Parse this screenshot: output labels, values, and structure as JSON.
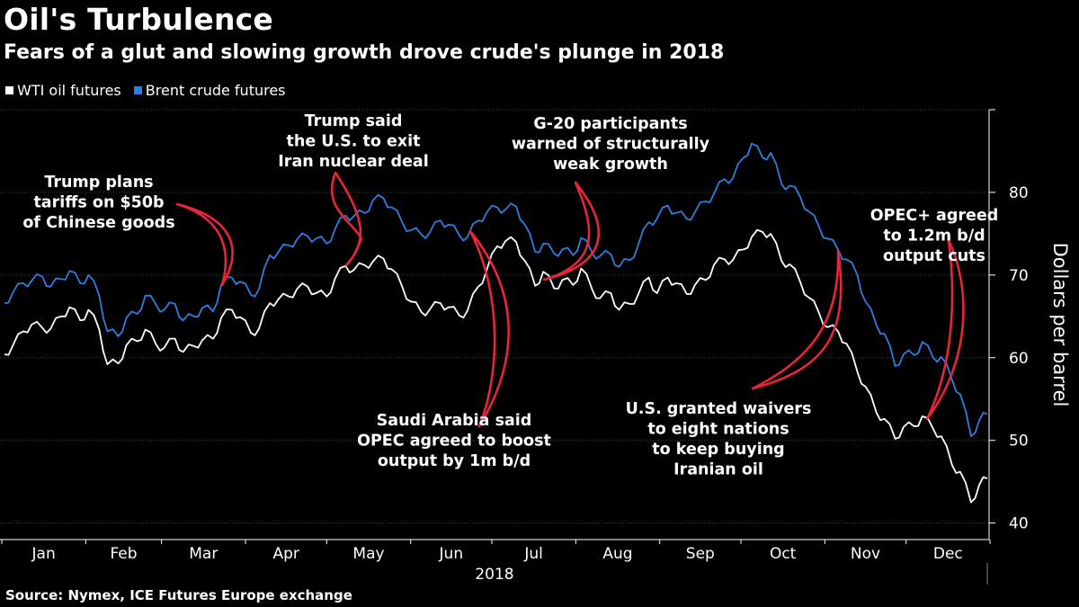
{
  "header": {
    "title": "Oil's Turbulence",
    "subtitle": "Fears of a glut and slowing growth drove crude's plunge in 2018"
  },
  "source": "Source: Nymex, ICE Futures Europe exchange",
  "colors": {
    "wti": "#ffffff",
    "brent": "#2f7ee0",
    "annotation_arrow": "#e8253a",
    "grid": "#444444"
  },
  "chart_data": {
    "type": "line",
    "title": "Oil's Turbulence",
    "subtitle": "Fears of a glut and slowing growth drove crude's plunge in 2018",
    "xlabel": "2018",
    "ylabel": "Dollars per barrel",
    "ylim": [
      38,
      90
    ],
    "yticks": [
      40,
      50,
      60,
      70,
      80
    ],
    "xlim": [
      1,
      365
    ],
    "months": [
      "Jan",
      "Feb",
      "Mar",
      "Apr",
      "May",
      "Jun",
      "Jul",
      "Aug",
      "Sep",
      "Oct",
      "Nov",
      "Dec"
    ],
    "year_label": "2018",
    "grid": true,
    "legend_position": "top-left",
    "series": [
      {
        "name": "WTI oil futures",
        "color": "#ffffff",
        "points": [
          [
            2,
            60.4
          ],
          [
            5,
            61.4
          ],
          [
            9,
            63.2
          ],
          [
            12,
            64.0
          ],
          [
            16,
            63.6
          ],
          [
            19,
            63.5
          ],
          [
            23,
            65.0
          ],
          [
            26,
            66.1
          ],
          [
            30,
            64.5
          ],
          [
            33,
            65.8
          ],
          [
            37,
            63.4
          ],
          [
            40,
            59.2
          ],
          [
            44,
            59.3
          ],
          [
            47,
            61.5
          ],
          [
            51,
            62.0
          ],
          [
            54,
            63.4
          ],
          [
            58,
            61.6
          ],
          [
            61,
            61.2
          ],
          [
            65,
            62.3
          ],
          [
            68,
            60.7
          ],
          [
            72,
            61.4
          ],
          [
            75,
            62.1
          ],
          [
            79,
            62.3
          ],
          [
            82,
            64.8
          ],
          [
            86,
            65.8
          ],
          [
            89,
            64.9
          ],
          [
            93,
            63.0
          ],
          [
            96,
            63.5
          ],
          [
            100,
            66.6
          ],
          [
            103,
            67.0
          ],
          [
            107,
            67.4
          ],
          [
            110,
            68.3
          ],
          [
            114,
            68.6
          ],
          [
            117,
            67.8
          ],
          [
            121,
            67.4
          ],
          [
            124,
            69.5
          ],
          [
            128,
            71.1
          ],
          [
            131,
            70.6
          ],
          [
            135,
            71.2
          ],
          [
            138,
            71.6
          ],
          [
            142,
            72.0
          ],
          [
            145,
            70.7
          ],
          [
            149,
            68.5
          ],
          [
            152,
            66.8
          ],
          [
            156,
            65.5
          ],
          [
            159,
            65.8
          ],
          [
            163,
            66.6
          ],
          [
            166,
            66.1
          ],
          [
            170,
            65.1
          ],
          [
            173,
            65.7
          ],
          [
            177,
            68.6
          ],
          [
            180,
            70.5
          ],
          [
            184,
            73.5
          ],
          [
            187,
            74.1
          ],
          [
            191,
            74.0
          ],
          [
            194,
            71.8
          ],
          [
            198,
            68.7
          ],
          [
            201,
            70.4
          ],
          [
            205,
            68.4
          ],
          [
            208,
            69.4
          ],
          [
            212,
            68.8
          ],
          [
            215,
            70.8
          ],
          [
            219,
            68.3
          ],
          [
            222,
            67.2
          ],
          [
            226,
            67.8
          ],
          [
            229,
            65.8
          ],
          [
            233,
            66.5
          ],
          [
            236,
            67.6
          ],
          [
            240,
            69.7
          ],
          [
            243,
            67.8
          ],
          [
            247,
            69.7
          ],
          [
            250,
            69.0
          ],
          [
            254,
            67.7
          ],
          [
            257,
            68.8
          ],
          [
            261,
            69.4
          ],
          [
            264,
            71.2
          ],
          [
            268,
            71.9
          ],
          [
            271,
            71.8
          ],
          [
            275,
            73.1
          ],
          [
            278,
            74.6
          ],
          [
            282,
            75.2
          ],
          [
            285,
            75.0
          ],
          [
            289,
            71.7
          ],
          [
            292,
            71.3
          ],
          [
            296,
            69.1
          ],
          [
            299,
            67.3
          ],
          [
            303,
            65.3
          ],
          [
            306,
            63.7
          ],
          [
            310,
            63.1
          ],
          [
            313,
            61.7
          ],
          [
            317,
            58.3
          ],
          [
            320,
            56.5
          ],
          [
            324,
            53.4
          ],
          [
            327,
            52.6
          ],
          [
            331,
            50.2
          ],
          [
            334,
            51.6
          ],
          [
            338,
            51.7
          ],
          [
            341,
            52.9
          ],
          [
            345,
            51.4
          ],
          [
            348,
            50.5
          ],
          [
            352,
            47.0
          ],
          [
            355,
            46.2
          ],
          [
            359,
            42.5
          ],
          [
            362,
            44.6
          ],
          [
            365,
            45.4
          ]
        ]
      },
      {
        "name": "Brent crude futures",
        "color": "#2f7ee0",
        "points": [
          [
            2,
            66.6
          ],
          [
            5,
            67.8
          ],
          [
            9,
            69.0
          ],
          [
            12,
            69.3
          ],
          [
            16,
            69.8
          ],
          [
            19,
            68.6
          ],
          [
            23,
            69.5
          ],
          [
            26,
            70.5
          ],
          [
            30,
            69.0
          ],
          [
            33,
            70.0
          ],
          [
            37,
            67.5
          ],
          [
            40,
            63.2
          ],
          [
            44,
            62.6
          ],
          [
            47,
            64.8
          ],
          [
            51,
            65.3
          ],
          [
            54,
            67.5
          ],
          [
            58,
            66.4
          ],
          [
            61,
            65.8
          ],
          [
            65,
            66.5
          ],
          [
            68,
            64.5
          ],
          [
            72,
            65.0
          ],
          [
            75,
            66.0
          ],
          [
            79,
            65.6
          ],
          [
            82,
            68.8
          ],
          [
            86,
            69.7
          ],
          [
            89,
            69.2
          ],
          [
            93,
            67.6
          ],
          [
            96,
            68.3
          ],
          [
            100,
            72.4
          ],
          [
            103,
            72.7
          ],
          [
            107,
            73.6
          ],
          [
            110,
            74.3
          ],
          [
            114,
            74.7
          ],
          [
            117,
            74.4
          ],
          [
            121,
            73.8
          ],
          [
            124,
            75.5
          ],
          [
            128,
            77.2
          ],
          [
            131,
            77.1
          ],
          [
            135,
            77.5
          ],
          [
            138,
            79.0
          ],
          [
            142,
            79.3
          ],
          [
            145,
            78.2
          ],
          [
            149,
            76.3
          ],
          [
            152,
            75.4
          ],
          [
            156,
            74.9
          ],
          [
            159,
            75.1
          ],
          [
            163,
            76.6
          ],
          [
            166,
            76.1
          ],
          [
            170,
            74.8
          ],
          [
            173,
            74.6
          ],
          [
            177,
            76.6
          ],
          [
            180,
            77.5
          ],
          [
            184,
            78.2
          ],
          [
            187,
            77.9
          ],
          [
            191,
            78.3
          ],
          [
            194,
            76.2
          ],
          [
            198,
            72.8
          ],
          [
            201,
            73.8
          ],
          [
            205,
            72.6
          ],
          [
            208,
            73.1
          ],
          [
            212,
            72.4
          ],
          [
            215,
            74.5
          ],
          [
            219,
            72.7
          ],
          [
            222,
            72.3
          ],
          [
            226,
            72.5
          ],
          [
            229,
            71.0
          ],
          [
            233,
            71.8
          ],
          [
            236,
            73.6
          ],
          [
            240,
            76.4
          ],
          [
            243,
            76.8
          ],
          [
            247,
            78.4
          ],
          [
            250,
            77.5
          ],
          [
            254,
            76.8
          ],
          [
            257,
            77.6
          ],
          [
            261,
            78.9
          ],
          [
            264,
            79.8
          ],
          [
            268,
            81.6
          ],
          [
            271,
            81.7
          ],
          [
            275,
            84.2
          ],
          [
            278,
            85.9
          ],
          [
            282,
            84.2
          ],
          [
            285,
            84.8
          ],
          [
            289,
            81.0
          ],
          [
            292,
            80.8
          ],
          [
            296,
            79.4
          ],
          [
            299,
            77.7
          ],
          [
            303,
            75.7
          ],
          [
            306,
            74.4
          ],
          [
            310,
            73.0
          ],
          [
            313,
            71.9
          ],
          [
            317,
            70.0
          ],
          [
            320,
            66.8
          ],
          [
            324,
            64.0
          ],
          [
            327,
            62.9
          ],
          [
            331,
            59.0
          ],
          [
            334,
            60.4
          ],
          [
            338,
            60.3
          ],
          [
            341,
            61.9
          ],
          [
            345,
            60.0
          ],
          [
            348,
            60.1
          ],
          [
            352,
            57.3
          ],
          [
            355,
            55.6
          ],
          [
            359,
            50.5
          ],
          [
            362,
            52.4
          ],
          [
            365,
            53.2
          ]
        ]
      }
    ],
    "annotations": [
      {
        "lines": [
          "Trump plans",
          "tariffs on $50b",
          "of Chinese goods"
        ],
        "x": 93
      },
      {
        "lines": [
          "Trump said",
          "the U.S. to exit",
          "Iran nuclear deal"
        ],
        "x": 128
      },
      {
        "lines": [
          "Saudi Arabia said",
          "OPEC agreed to boost",
          "output by 1m b/d"
        ],
        "x": 174
      },
      {
        "lines": [
          "G-20 participants",
          "warned of structurally",
          "weak growth"
        ],
        "x": 213
      },
      {
        "lines": [
          "U.S. granted waivers",
          "to eight nations",
          "to keep buying",
          "Iranian oil"
        ],
        "x": 308
      },
      {
        "lines": [
          "OPEC+ agreed",
          "to 1.2m b/d",
          "output cuts"
        ],
        "x": 340
      }
    ]
  }
}
